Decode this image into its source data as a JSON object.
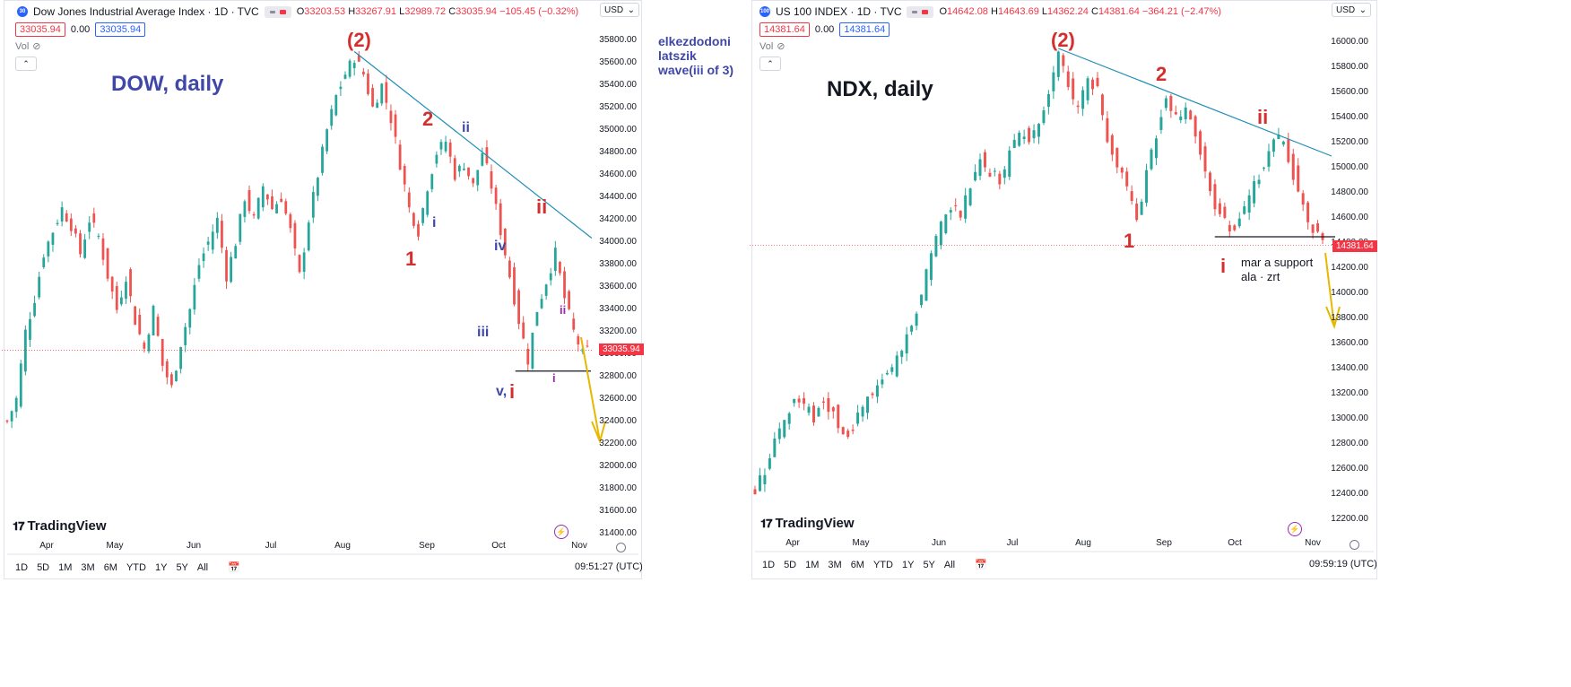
{
  "panels": [
    {
      "id": "dow",
      "header": {
        "symbol_badge": "30",
        "title": "Dow Jones Industrial Average Index · 1D · TVC",
        "ohlc": {
          "o_label": "O",
          "o": "33203.53",
          "h_label": "H",
          "h": "33267.91",
          "l_label": "L",
          "l": "32989.72",
          "c_label": "C",
          "c": "33035.94",
          "change": "−105.45 (−0.32%)"
        }
      },
      "price_box_sell": "33035.94",
      "spread": "0.00",
      "price_box_buy": "33035.94",
      "vol_label": "Vol",
      "currency": "USD",
      "last_price_tag": "33035.94",
      "overlay_title": "DOW, daily",
      "y_ticks": [
        "35800.00",
        "35600.00",
        "35400.00",
        "35200.00",
        "35000.00",
        "34800.00",
        "34600.00",
        "34400.00",
        "34200.00",
        "34000.00",
        "33800.00",
        "33600.00",
        "33400.00",
        "33200.00",
        "33000.00",
        "32800.00",
        "32600.00",
        "32400.00",
        "32200.00",
        "32000.00",
        "31800.00",
        "31600.00",
        "31400.00"
      ],
      "x_ticks": [
        "Apr",
        "May",
        "Jun",
        "Jul",
        "Aug",
        "Sep",
        "Oct",
        "Nov"
      ],
      "timeframes": [
        "1D",
        "5D",
        "1M",
        "3M",
        "6M",
        "YTD",
        "1Y",
        "5Y",
        "All"
      ],
      "clock": "09:51:27 (UTC)",
      "logo": "TradingView",
      "annotations": [
        "(2)",
        "2",
        "1",
        "ii",
        "i",
        "iv",
        "iii",
        "ii",
        "v,",
        "i",
        "ii",
        "i"
      ]
    },
    {
      "id": "ndx",
      "header": {
        "symbol_badge": "100",
        "title": "US 100 INDEX · 1D · TVC",
        "ohlc": {
          "o_label": "O",
          "o": "14642.08",
          "h_label": "H",
          "h": "14643.69",
          "l_label": "L",
          "l": "14362.24",
          "c_label": "C",
          "c": "14381.64",
          "change": "−364.21 (−2.47%)"
        }
      },
      "price_box_sell": "14381.64",
      "spread": "0.00",
      "price_box_buy": "14381.64",
      "vol_label": "Vol",
      "currency": "USD",
      "last_price_tag": "14381.64",
      "overlay_title": "NDX, daily",
      "y_ticks": [
        "16000.00",
        "15800.00",
        "15600.00",
        "15400.00",
        "15200.00",
        "15000.00",
        "14800.00",
        "14600.00",
        "14400.00",
        "14200.00",
        "14000.00",
        "13800.00",
        "13600.00",
        "13400.00",
        "13200.00",
        "13000.00",
        "12800.00",
        "12600.00",
        "12400.00",
        "12200.00"
      ],
      "x_ticks": [
        "Apr",
        "May",
        "Jun",
        "Jul",
        "Aug",
        "Sep",
        "Oct",
        "Nov"
      ],
      "timeframes": [
        "1D",
        "5D",
        "1M",
        "3M",
        "6M",
        "YTD",
        "1Y",
        "5Y",
        "All"
      ],
      "clock": "09:59:19 (UTC)",
      "logo": "TradingView",
      "annotations": [
        "(2)",
        "2",
        "ii",
        "1",
        "i"
      ],
      "note_line1": "mar a support",
      "note_line2": "ala · zrt"
    }
  ],
  "side_note": [
    "elkezdodoni",
    "latszik",
    "wave(iii of 3)"
  ],
  "colors": {
    "up": "#26a69a",
    "down": "#ef5350",
    "wave_red": "#d32f2f",
    "wave_blue": "#3f48a8",
    "wave_purple": "#9c27b0",
    "trend": "#1f8fb5",
    "arrow": "#e6b800"
  },
  "chart_data": [
    {
      "type": "candlestick",
      "title": "Dow Jones Industrial Average Index · 1D · TVC",
      "ylim": [
        31400,
        35900
      ],
      "x_range": [
        "Mar 2022",
        "Nov 2022"
      ],
      "close_path": [
        [
          0,
          32400
        ],
        [
          2,
          32600
        ],
        [
          4,
          33200
        ],
        [
          6,
          33500
        ],
        [
          8,
          33900
        ],
        [
          10,
          34100
        ],
        [
          12,
          34300
        ],
        [
          14,
          34150
        ],
        [
          16,
          33900
        ],
        [
          18,
          34200
        ],
        [
          20,
          34050
        ],
        [
          22,
          33700
        ],
        [
          24,
          33400
        ],
        [
          26,
          33700
        ],
        [
          28,
          33300
        ],
        [
          30,
          33050
        ],
        [
          32,
          33400
        ],
        [
          34,
          32900
        ],
        [
          36,
          32700
        ],
        [
          38,
          33100
        ],
        [
          40,
          33400
        ],
        [
          42,
          33800
        ],
        [
          44,
          34000
        ],
        [
          46,
          34200
        ],
        [
          48,
          33700
        ],
        [
          50,
          34000
        ],
        [
          52,
          34400
        ],
        [
          54,
          34200
        ],
        [
          56,
          34500
        ],
        [
          58,
          34300
        ],
        [
          60,
          34400
        ],
        [
          62,
          34100
        ],
        [
          64,
          33700
        ],
        [
          66,
          34200
        ],
        [
          68,
          34600
        ],
        [
          70,
          35000
        ],
        [
          72,
          35300
        ],
        [
          74,
          35500
        ],
        [
          76,
          35650
        ],
        [
          78,
          35500
        ],
        [
          80,
          35200
        ],
        [
          82,
          35400
        ],
        [
          84,
          35100
        ],
        [
          86,
          34700
        ],
        [
          88,
          34300
        ],
        [
          90,
          34100
        ],
        [
          92,
          34500
        ],
        [
          94,
          34800
        ],
        [
          96,
          34900
        ],
        [
          98,
          34600
        ],
        [
          100,
          34700
        ],
        [
          102,
          34500
        ],
        [
          104,
          34800
        ],
        [
          106,
          34500
        ],
        [
          108,
          34100
        ],
        [
          110,
          33700
        ],
        [
          112,
          33300
        ],
        [
          114,
          32950
        ],
        [
          116,
          33400
        ],
        [
          118,
          33650
        ],
        [
          120,
          33900
        ],
        [
          122,
          33500
        ],
        [
          124,
          33200
        ],
        [
          126,
          33000
        ],
        [
          127,
          33035.94
        ]
      ],
      "support_level": 32850,
      "trendline": [
        [
          76,
          35700
        ],
        [
          126,
          34100
        ]
      ]
    },
    {
      "type": "candlestick",
      "title": "US 100 INDEX · 1D · TVC",
      "ylim": [
        12100,
        16200
      ],
      "x_range": [
        "Mar 2022",
        "Nov 2022"
      ],
      "close_path": [
        [
          0,
          12450
        ],
        [
          2,
          12600
        ],
        [
          4,
          12850
        ],
        [
          6,
          13000
        ],
        [
          8,
          13150
        ],
        [
          10,
          13100
        ],
        [
          12,
          13000
        ],
        [
          14,
          13150
        ],
        [
          16,
          13050
        ],
        [
          18,
          12850
        ],
        [
          20,
          12900
        ],
        [
          22,
          13100
        ],
        [
          24,
          13200
        ],
        [
          26,
          13300
        ],
        [
          28,
          13400
        ],
        [
          30,
          13550
        ],
        [
          32,
          13700
        ],
        [
          34,
          14000
        ],
        [
          36,
          14350
        ],
        [
          38,
          14550
        ],
        [
          40,
          14700
        ],
        [
          42,
          14650
        ],
        [
          44,
          14850
        ],
        [
          46,
          15100
        ],
        [
          48,
          14950
        ],
        [
          50,
          14900
        ],
        [
          52,
          15100
        ],
        [
          54,
          15300
        ],
        [
          56,
          15200
        ],
        [
          58,
          15350
        ],
        [
          60,
          15600
        ],
        [
          62,
          15900
        ],
        [
          64,
          15650
        ],
        [
          66,
          15450
        ],
        [
          68,
          15750
        ],
        [
          70,
          15600
        ],
        [
          72,
          15250
        ],
        [
          74,
          15050
        ],
        [
          76,
          14850
        ],
        [
          78,
          14600
        ],
        [
          80,
          14950
        ],
        [
          82,
          15250
        ],
        [
          84,
          15600
        ],
        [
          86,
          15400
        ],
        [
          88,
          15450
        ],
        [
          90,
          15250
        ],
        [
          92,
          15000
        ],
        [
          94,
          14700
        ],
        [
          96,
          14550
        ],
        [
          98,
          14500
        ],
        [
          100,
          14650
        ],
        [
          102,
          14850
        ],
        [
          104,
          15050
        ],
        [
          106,
          15250
        ],
        [
          108,
          15200
        ],
        [
          110,
          14950
        ],
        [
          112,
          14700
        ],
        [
          114,
          14500
        ],
        [
          116,
          14381.64
        ]
      ],
      "support_level": 14450,
      "trendline": [
        [
          62,
          15950
        ],
        [
          116,
          15150
        ]
      ]
    }
  ]
}
